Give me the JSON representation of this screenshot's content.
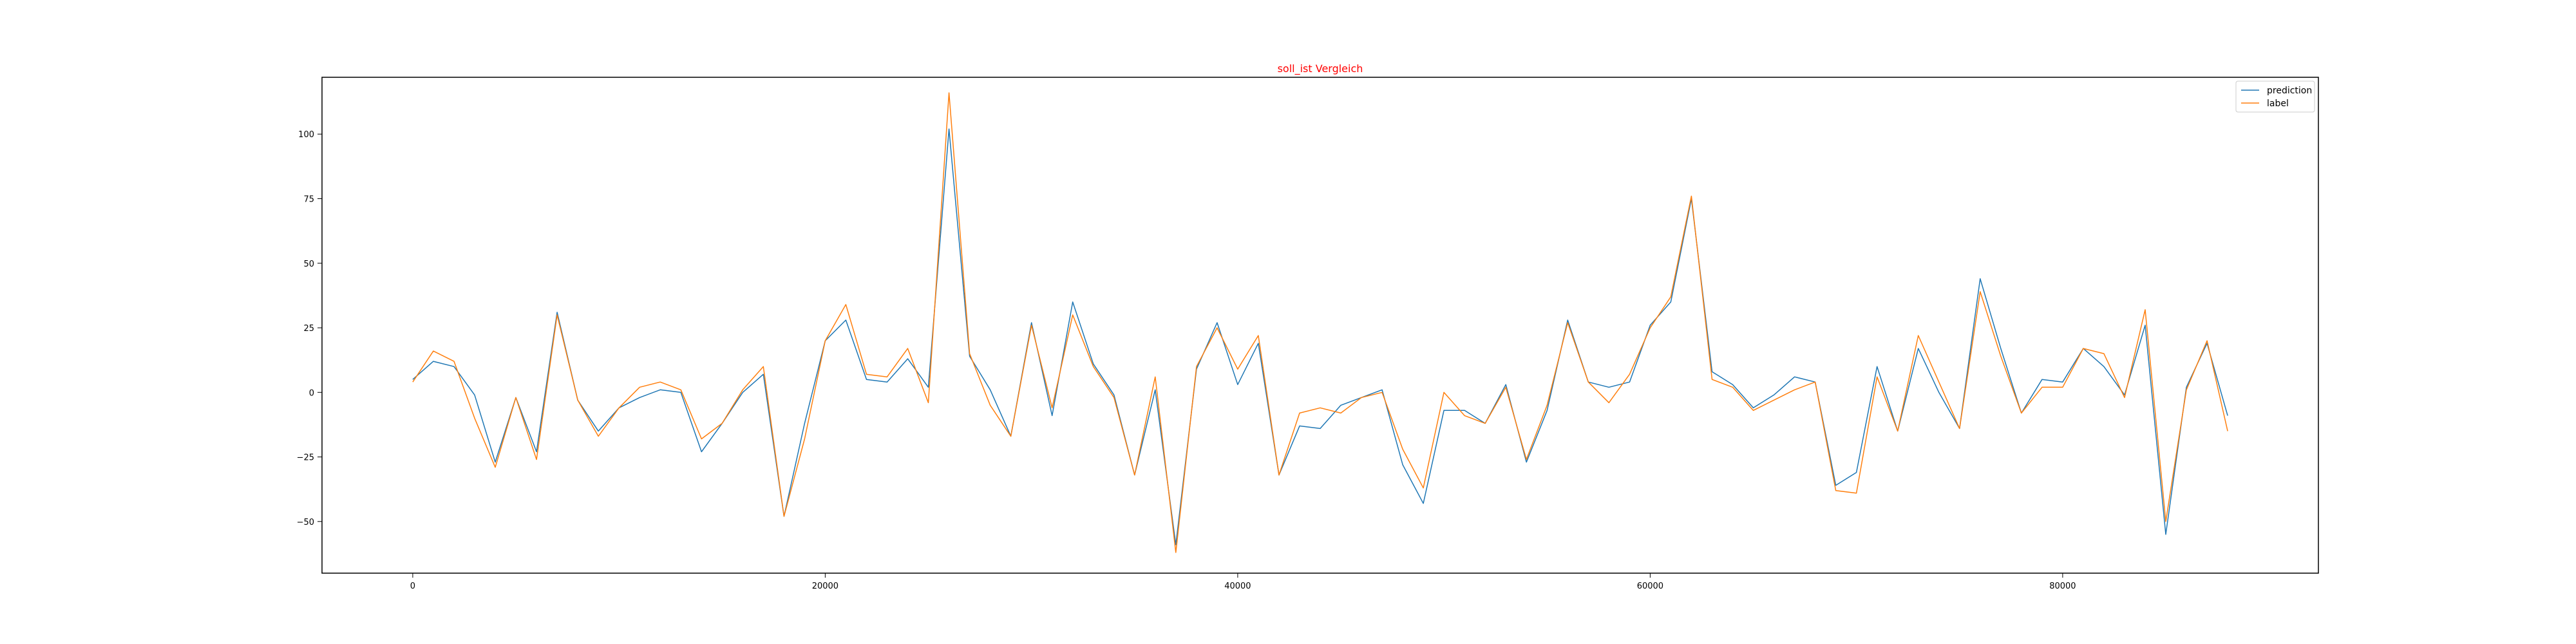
{
  "chart_data": {
    "type": "line",
    "title": "soll_ist Vergleich",
    "title_color": "#ff0000",
    "xlabel": "",
    "ylabel": "",
    "xlim": [
      -4400,
      92400
    ],
    "ylim": [
      -70,
      122
    ],
    "xticks": [
      0,
      20000,
      40000,
      60000,
      80000
    ],
    "xtick_labels": [
      "0",
      "20000",
      "40000",
      "60000",
      "80000"
    ],
    "yticks": [
      -50,
      -25,
      0,
      25,
      50,
      75,
      100
    ],
    "ytick_labels": [
      "−50",
      "−25",
      "0",
      "25",
      "50",
      "75",
      "100"
    ],
    "grid": false,
    "legend": "top-right",
    "x": [
      0,
      1000,
      2000,
      3000,
      4000,
      5000,
      6000,
      7000,
      8000,
      9000,
      10000,
      11000,
      12000,
      13000,
      14000,
      15000,
      16000,
      17000,
      18000,
      19000,
      20000,
      21000,
      22000,
      23000,
      24000,
      25000,
      26000,
      27000,
      28000,
      29000,
      30000,
      31000,
      32000,
      33000,
      34000,
      35000,
      36000,
      37000,
      38000,
      39000,
      40000,
      41000,
      42000,
      43000,
      44000,
      45000,
      46000,
      47000,
      48000,
      49000,
      50000,
      51000,
      52000,
      53000,
      54000,
      55000,
      56000,
      57000,
      58000,
      59000,
      60000,
      61000,
      62000,
      63000,
      64000,
      65000,
      66000,
      67000,
      68000,
      69000,
      70000,
      71000,
      72000,
      73000,
      74000,
      75000,
      76000,
      77000,
      78000,
      79000,
      80000,
      81000,
      82000,
      83000,
      84000,
      85000,
      86000,
      87000,
      88000
    ],
    "series": [
      {
        "name": "prediction",
        "color": "#1f77b4",
        "values": [
          5,
          12,
          10,
          -1,
          -27,
          -2,
          -23,
          31,
          -3,
          -15,
          -6,
          -2,
          1,
          0,
          -23,
          -12,
          0,
          7,
          -48,
          -12,
          20,
          28,
          5,
          4,
          13,
          2,
          102,
          14,
          1,
          -17,
          27,
          -9,
          35,
          11,
          -1,
          -32,
          1,
          -59,
          9,
          27,
          3,
          19,
          -32,
          -13,
          -14,
          -5,
          -2,
          1,
          -28,
          -43,
          -7,
          -7,
          -12,
          3,
          -27,
          -7,
          28,
          4,
          2,
          4,
          26,
          35,
          75,
          8,
          3,
          -6,
          -1,
          6,
          4,
          -36,
          -31,
          10,
          -15,
          17,
          0,
          -14,
          44,
          17,
          -8,
          5,
          4,
          17,
          10,
          -1,
          26,
          -55,
          2,
          19,
          -9
        ]
      },
      {
        "name": "label",
        "color": "#ff7f0e",
        "values": [
          4,
          16,
          12,
          -10,
          -29,
          -2,
          -26,
          30,
          -3,
          -17,
          -6,
          2,
          4,
          1,
          -18,
          -12,
          1,
          10,
          -48,
          -18,
          20,
          34,
          7,
          6,
          17,
          -4,
          116,
          15,
          -5,
          -17,
          26,
          -6,
          30,
          10,
          -2,
          -32,
          6,
          -62,
          10,
          25,
          9,
          22,
          -32,
          -8,
          -6,
          -8,
          -2,
          0,
          -22,
          -37,
          0,
          -9,
          -12,
          2,
          -26,
          -5,
          27,
          4,
          -4,
          7,
          25,
          37,
          76,
          5,
          2,
          -7,
          -3,
          1,
          4,
          -38,
          -39,
          6,
          -15,
          22,
          4,
          -14,
          39,
          14,
          -8,
          2,
          2,
          17,
          15,
          -2,
          32,
          -50,
          1,
          20,
          -15
        ]
      }
    ]
  }
}
